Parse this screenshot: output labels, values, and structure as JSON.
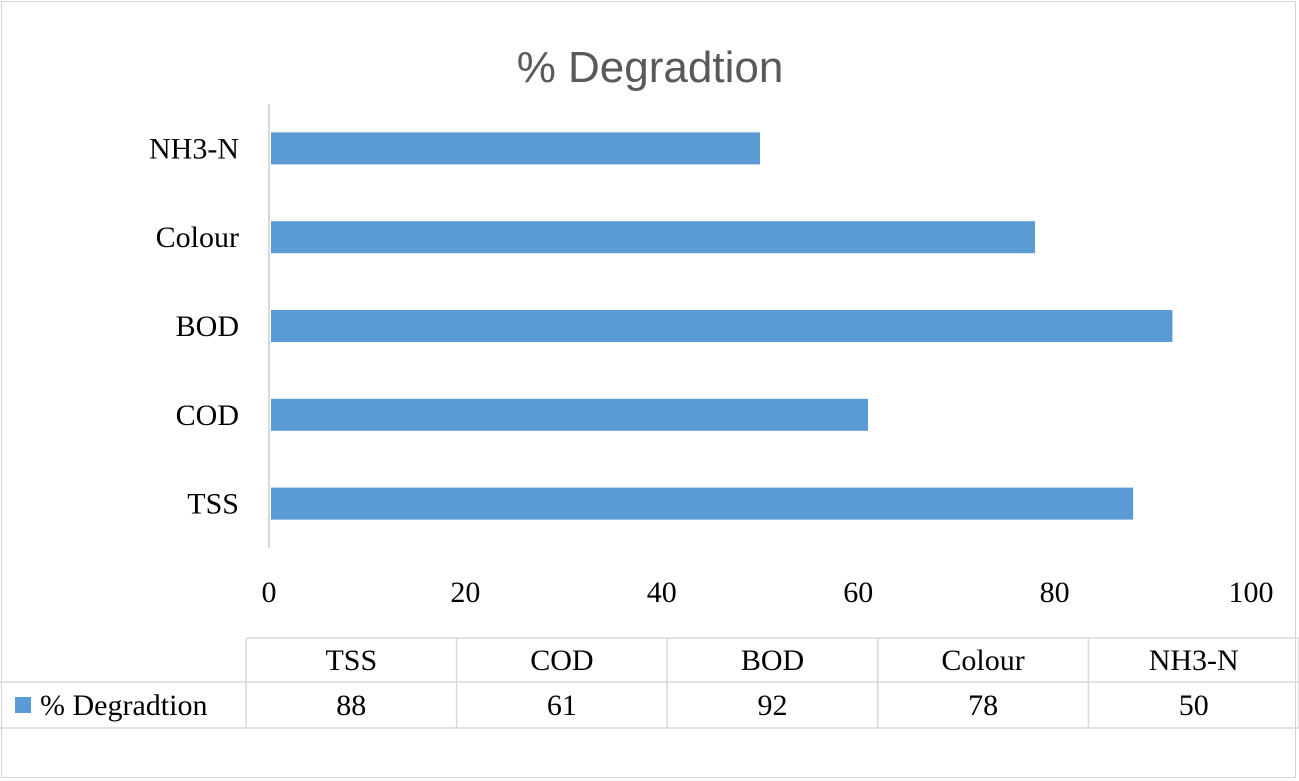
{
  "chart_data": {
    "type": "bar",
    "orientation": "horizontal",
    "title": "% Degradtion",
    "categories": [
      "TSS",
      "COD",
      "BOD",
      "Colour",
      "NH3-N"
    ],
    "series": [
      {
        "name": "% Degradtion",
        "values": [
          88,
          61,
          92,
          78,
          50
        ],
        "color": "#5b9bd5"
      }
    ],
    "xlim": [
      0,
      100
    ],
    "xticks": [
      "0",
      "20",
      "40",
      "60",
      "80",
      "100"
    ],
    "grid": false,
    "data_table": true,
    "legend_in_table": true
  }
}
